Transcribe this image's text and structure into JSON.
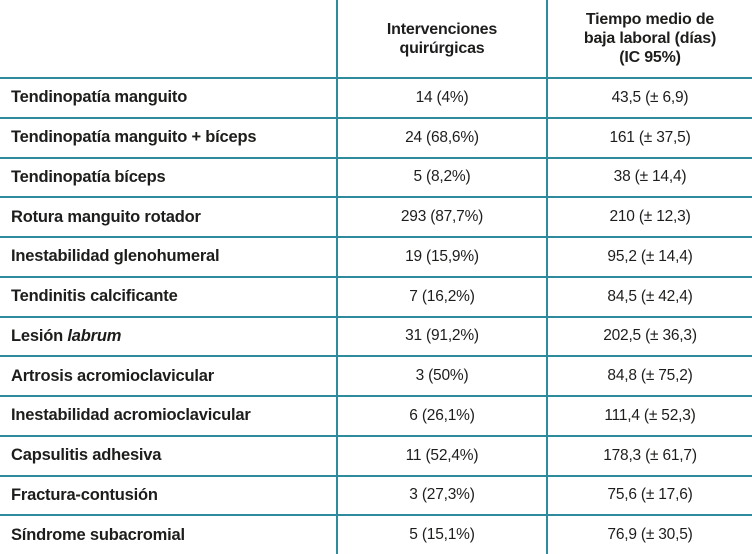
{
  "chart_data": {
    "type": "table",
    "title": "",
    "columns": [
      "",
      "Intervenciones quirúrgicas",
      "Tiempo medio de baja laboral (días) (IC 95%)"
    ],
    "rows": [
      [
        "Tendinopatía manguito",
        "14 (4%)",
        "43,5 (± 6,9)"
      ],
      [
        "Tendinopatía manguito + bíceps",
        "24 (68,6%)",
        "161 (± 37,5)"
      ],
      [
        "Tendinopatía bíceps",
        "5 (8,2%)",
        "38 (± 14,4)"
      ],
      [
        "Rotura manguito rotador",
        "293 (87,7%)",
        "210 (± 12,3)"
      ],
      [
        "Inestabilidad glenohumeral",
        "19 (15,9%)",
        "95,2 (± 14,4)"
      ],
      [
        "Tendinitis calcificante",
        "7 (16,2%)",
        "84,5 (± 42,4)"
      ],
      [
        "Lesión labrum",
        "31 (91,2%)",
        "202,5 (± 36,3)"
      ],
      [
        "Artrosis acromioclavicular",
        "3 (50%)",
        "84,8 (± 75,2)"
      ],
      [
        "Inestabilidad acromioclavicular",
        "6 (26,1%)",
        "111,4 (± 52,3)"
      ],
      [
        "Capsulitis adhesiva",
        "11 (52,4%)",
        "178,3 (± 61,7)"
      ],
      [
        "Fractura-contusión",
        "3 (27,3%)",
        "75,6 (± 17,6)"
      ],
      [
        "Síndrome subacromial",
        "5 (15,1%)",
        "76,9 (± 30,5)"
      ]
    ]
  },
  "header": {
    "interventions_lines": [
      "Intervenciones",
      "quirúrgicas"
    ],
    "days_lines": [
      "Tiempo medio de",
      "baja laboral (días)",
      "(IC 95%)"
    ]
  },
  "rows": [
    {
      "label": "Tendinopatía manguito",
      "interventions": "14 (4%)",
      "days": "43,5 (± 6,9)"
    },
    {
      "label": "Tendinopatía manguito + bíceps",
      "interventions": "24 (68,6%)",
      "days": "161 (± 37,5)"
    },
    {
      "label": "Tendinopatía bíceps",
      "interventions": "5 (8,2%)",
      "days": "38 (± 14,4)"
    },
    {
      "label": "Rotura manguito rotador",
      "interventions": "293 (87,7%)",
      "days": "210 (± 12,3)"
    },
    {
      "label": "Inestabilidad glenohumeral",
      "interventions": "19 (15,9%)",
      "days": "95,2 (± 14,4)"
    },
    {
      "label": "Tendinitis calcificante",
      "interventions": "7 (16,2%)",
      "days": "84,5 (± 42,4)"
    },
    {
      "label": "Lesión ",
      "label_italic": "labrum",
      "interventions": "31 (91,2%)",
      "days": "202,5 (± 36,3)"
    },
    {
      "label": "Artrosis acromioclavicular",
      "interventions": "3 (50%)",
      "days": "84,8 (± 75,2)"
    },
    {
      "label": "Inestabilidad acromioclavicular",
      "interventions": "6 (26,1%)",
      "days": "111,4 (± 52,3)"
    },
    {
      "label": "Capsulitis adhesiva",
      "interventions": "11 (52,4%)",
      "days": "178,3 (± 61,7)"
    },
    {
      "label": "Fractura-contusión",
      "interventions": "3 (27,3%)",
      "days": "75,6 (± 17,6)"
    },
    {
      "label": "Síndrome subacromial",
      "interventions": "5 (15,1%)",
      "days": "76,9 (± 30,5)"
    }
  ],
  "colors": {
    "line": "#2e8b9e",
    "text": "#1d1d1b",
    "bg": "#ffffff"
  }
}
